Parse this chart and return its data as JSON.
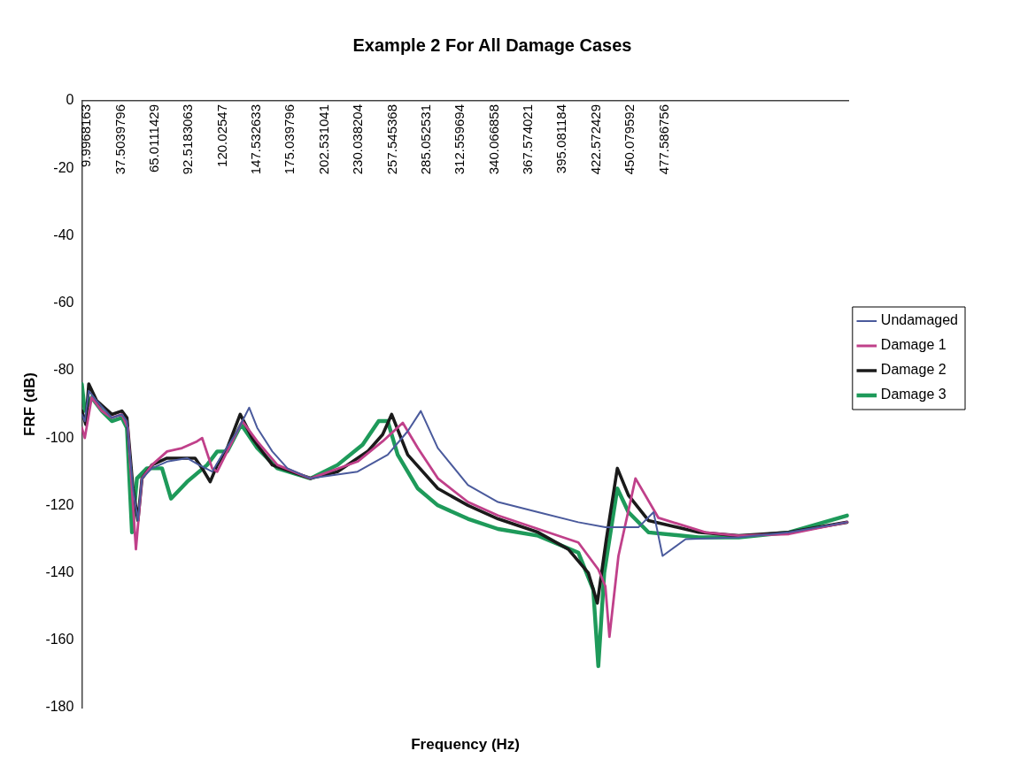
{
  "chart_data": {
    "type": "line",
    "title": "Example 2 For All Damage Cases",
    "xlabel": "Frequency (Hz)",
    "ylabel": "FRF (dB)",
    "xlim": [
      6,
      627
    ],
    "ylim": [
      -180,
      0
    ],
    "xticks": [
      9.9968163,
      37.5039796,
      65.0111429,
      92.5183063,
      120.02547,
      147.532633,
      175.039796,
      202.531041,
      230.038204,
      257.545368,
      285.052531,
      312.559694,
      340.066858,
      367.574021,
      395.081184,
      422.572429,
      450.079592,
      477.586756
    ],
    "yticks": [
      -180,
      -160,
      -140,
      -120,
      -100,
      -80,
      -60,
      -40,
      -20,
      0
    ],
    "legend": "right",
    "marker": "none",
    "line_style": "solid",
    "series": [
      {
        "name": "Undamaged",
        "color": "#4a5a9c",
        "x": [
          6,
          8.4,
          11.6,
          18.1,
          30.3,
          38.4,
          42.5,
          47.4,
          51.4,
          54.7,
          62.8,
          75,
          91.2,
          100.9,
          111.5,
          119.6,
          131.8,
          141.5,
          148,
          160.2,
          172.4,
          191.1,
          229.2,
          253.6,
          269.8,
          280.4,
          294.2,
          318.6,
          342.9,
          375.4,
          407.9,
          429.8,
          456.6,
          468.8,
          476.1,
          494.8,
          537.8,
          578.4,
          625.5
        ],
        "values": [
          -93,
          -95,
          -86,
          -89,
          -94,
          -93,
          -95,
          -115,
          -124.5,
          -112,
          -109,
          -107,
          -106,
          -108,
          -110,
          -105,
          -98,
          -91,
          -97,
          -104,
          -109,
          -112,
          -110,
          -105,
          -98,
          -92,
          -103,
          -114,
          -119,
          -122,
          -125,
          -126.5,
          -126.5,
          -122,
          -135,
          -130,
          -129.5,
          -128,
          -125
        ]
      },
      {
        "name": "Damage 1",
        "color": "#c0408a",
        "x": [
          6,
          8.4,
          14,
          22.2,
          30.3,
          38.4,
          43.3,
          49.8,
          54.7,
          62.8,
          75,
          87.1,
          99.3,
          103.4,
          111.5,
          115.6,
          123.7,
          135.9,
          148,
          164.3,
          191.1,
          229.2,
          249.5,
          265.8,
          278,
          294.2,
          318.6,
          342.9,
          375.4,
          407.9,
          424.1,
          429.8,
          433.1,
          440.4,
          454.2,
          472.8,
          511,
          537.8,
          578.4,
          625.5
        ],
        "values": [
          -97,
          -100,
          -88,
          -92,
          -94,
          -93,
          -97,
          -133,
          -112,
          -108,
          -104,
          -103,
          -101,
          -100,
          -109,
          -110,
          -104,
          -95,
          -101,
          -108,
          -112,
          -107,
          -101,
          -95.5,
          -103,
          -112,
          -119,
          -123,
          -127,
          -131,
          -139,
          -144,
          -159,
          -135,
          -112,
          -123.7,
          -128,
          -129,
          -128.5,
          -125
        ]
      },
      {
        "name": "Damage 2",
        "color": "#1a1a1a",
        "x": [
          6,
          9.2,
          11.6,
          18.1,
          30.3,
          38.4,
          42.5,
          47.4,
          51.4,
          54.7,
          62.8,
          75,
          91.2,
          97.7,
          103.4,
          109.9,
          115.6,
          123.7,
          134.2,
          144,
          160.2,
          191.1,
          213,
          237.4,
          249.5,
          256.8,
          269.8,
          294.2,
          318.6,
          342.9,
          375.4,
          399.8,
          416,
          423.3,
          430.6,
          439.5,
          448.5,
          464.7,
          505.3,
          537.8,
          578.4,
          625.5
        ],
        "values": [
          -92,
          -96,
          -84,
          -89,
          -93,
          -92,
          -94,
          -115,
          -124.5,
          -112,
          -108,
          -106,
          -106,
          -106,
          -109,
          -113,
          -108,
          -103,
          -93,
          -100,
          -108,
          -112,
          -110,
          -104,
          -99,
          -93,
          -105,
          -115,
          -120,
          -124,
          -128,
          -133,
          -140,
          -149,
          -130,
          -109,
          -117,
          -124.5,
          -128,
          -129,
          -128,
          -125
        ]
      },
      {
        "name": "Damage 3",
        "color": "#1e9a5a",
        "x": [
          6,
          8.4,
          14,
          22.2,
          30.3,
          38.4,
          42.5,
          46.6,
          50.6,
          58.7,
          70.9,
          78.2,
          91.2,
          107.4,
          115.6,
          123.7,
          135,
          148,
          164.3,
          191.1,
          213,
          233.3,
          246.3,
          253.6,
          261.7,
          278,
          294.2,
          318.6,
          342.9,
          375.4,
          407.9,
          420,
          424.1,
          428.9,
          439.5,
          448.5,
          464.7,
          505.3,
          537.8,
          578.4,
          625.5
        ],
        "values": [
          -84,
          -92,
          -88,
          -92,
          -95,
          -94,
          -97,
          -128,
          -112,
          -109,
          -109,
          -118,
          -113,
          -108,
          -104,
          -104,
          -96,
          -103,
          -109,
          -112,
          -108,
          -102,
          -95,
          -95,
          -105,
          -115,
          -120,
          -124,
          -127,
          -129,
          -134,
          -145,
          -167.7,
          -140,
          -115,
          -122,
          -128,
          -129.5,
          -129.5,
          -128,
          -123
        ]
      }
    ]
  }
}
